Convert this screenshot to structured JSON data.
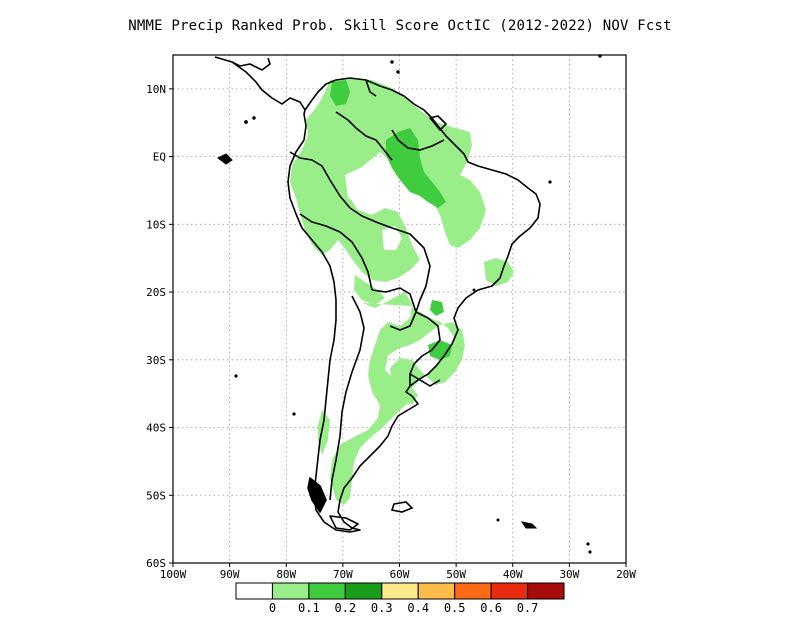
{
  "title": "NMME Precip Ranked Prob. Skill Score OctIC (2012-2022) NOV Fcst",
  "map": {
    "lon_range": [
      -100,
      -20
    ],
    "lat_range": [
      -60,
      15
    ],
    "lat_labels": [
      "10N",
      "EQ",
      "10S",
      "20S",
      "30S",
      "40S",
      "50S",
      "60S"
    ],
    "lat_values": [
      10,
      0,
      -10,
      -20,
      -30,
      -40,
      -50,
      -60
    ],
    "lon_labels": [
      "100W",
      "90W",
      "80W",
      "70W",
      "60W",
      "50W",
      "40W",
      "30W",
      "20W"
    ],
    "lon_values": [
      -100,
      -90,
      -80,
      -70,
      -60,
      -50,
      -40,
      -30,
      -20
    ],
    "grid": "dotted",
    "land_color": "#ffffff",
    "boundary_color": "#000000"
  },
  "colorbar": {
    "labels": [
      "0",
      "0.1",
      "0.2",
      "0.3",
      "0.4",
      "0.5",
      "0.6",
      "0.7"
    ],
    "colors": [
      "#ffffff",
      "#9aee8a",
      "#3fcc3f",
      "#1a9e1a",
      "#fbe98a",
      "#fbbd4a",
      "#fb6a14",
      "#e82a0e",
      "#a70b0b"
    ]
  },
  "skill_regions": [
    {
      "region": "northern-south-america",
      "level": "0-0.1",
      "color": "#9aee8a"
    },
    {
      "region": "amazon-east",
      "level": "0.1-0.2",
      "color": "#3fcc3f"
    },
    {
      "region": "venezuela-north",
      "level": "0.1-0.2",
      "color": "#3fcc3f"
    },
    {
      "region": "southern-brazil",
      "level": "0.1-0.2",
      "color": "#3fcc3f"
    },
    {
      "region": "patagonia-andes",
      "level": "0-0.1",
      "color": "#9aee8a"
    }
  ]
}
